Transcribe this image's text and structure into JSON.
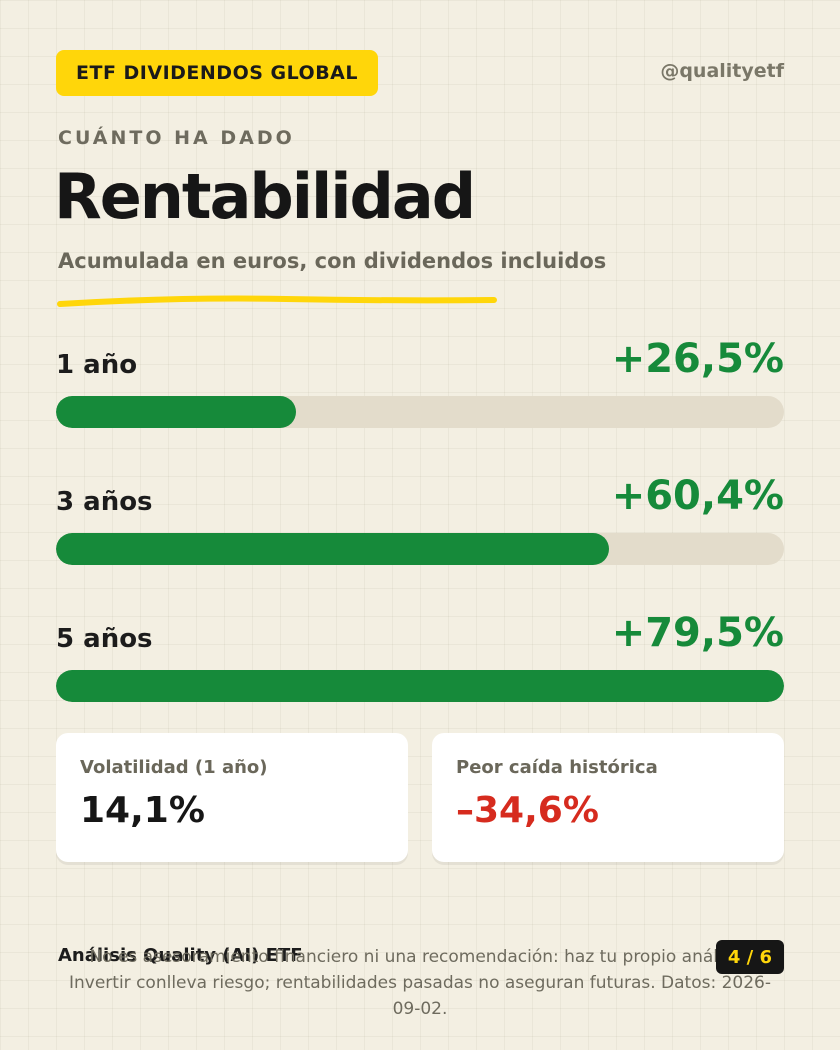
{
  "header": {
    "tag": "ETF DIVIDENDOS GLOBAL",
    "handle": "@qualityetf",
    "eyebrow": "CUÁNTO HA DADO",
    "title": "Rentabilidad",
    "subtitle": "Acumulada en euros, con dividendos incluidos"
  },
  "returns": [
    {
      "label": "1 año",
      "value": "+26,5%",
      "bar_fraction": 0.33
    },
    {
      "label": "3 años",
      "value": "+60,4%",
      "bar_fraction": 0.76
    },
    {
      "label": "5 años",
      "value": "+79,5%",
      "bar_fraction": 1.0
    }
  ],
  "cards": [
    {
      "label": "Volatilidad (1 año)",
      "value": "14,1%"
    },
    {
      "label": "Peor caída histórica",
      "value": "–34,6%"
    }
  ],
  "footer": {
    "brand": "Análisis Quality (AI) ETF",
    "disclaimer": "No es asesoramiento financiero ni una recomendación: haz tu propio análisis. Invertir conlleva riesgo; rentabilidades pasadas no aseguran futuras. Datos: 2026-09-02.",
    "page": "4 / 6"
  },
  "colors": {
    "accent": "#ffd60a",
    "positive": "#168a3a",
    "negative": "#d62b1e",
    "track": "#e3dccb",
    "background": "#f3efe2"
  }
}
